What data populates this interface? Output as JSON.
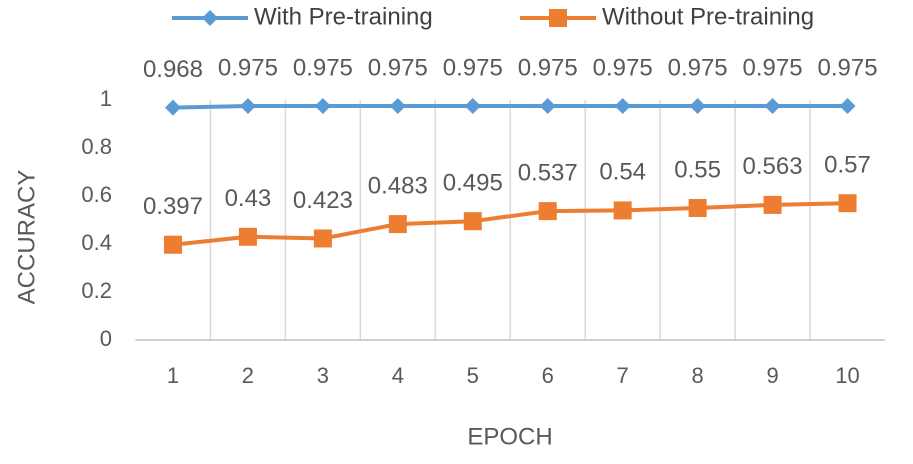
{
  "chart_data": {
    "type": "line",
    "x_label": "EPOCH",
    "y_label": "ACCURACY",
    "categories": [
      "1",
      "2",
      "3",
      "4",
      "5",
      "6",
      "7",
      "8",
      "9",
      "10"
    ],
    "series": [
      {
        "name": "With Pre-training",
        "color": "#5b9bd5",
        "marker": "diamond",
        "values": [
          0.968,
          0.975,
          0.975,
          0.975,
          0.975,
          0.975,
          0.975,
          0.975,
          0.975,
          0.975
        ]
      },
      {
        "name": "Without Pre-training",
        "color": "#ed7d31",
        "marker": "square",
        "values": [
          0.397,
          0.43,
          0.423,
          0.483,
          0.495,
          0.537,
          0.54,
          0.55,
          0.563,
          0.57
        ]
      }
    ],
    "ylim": [
      0,
      1
    ],
    "yticks": [
      0,
      0.2,
      0.4,
      0.6,
      0.8,
      1
    ],
    "grid": "x",
    "legend": "top"
  }
}
